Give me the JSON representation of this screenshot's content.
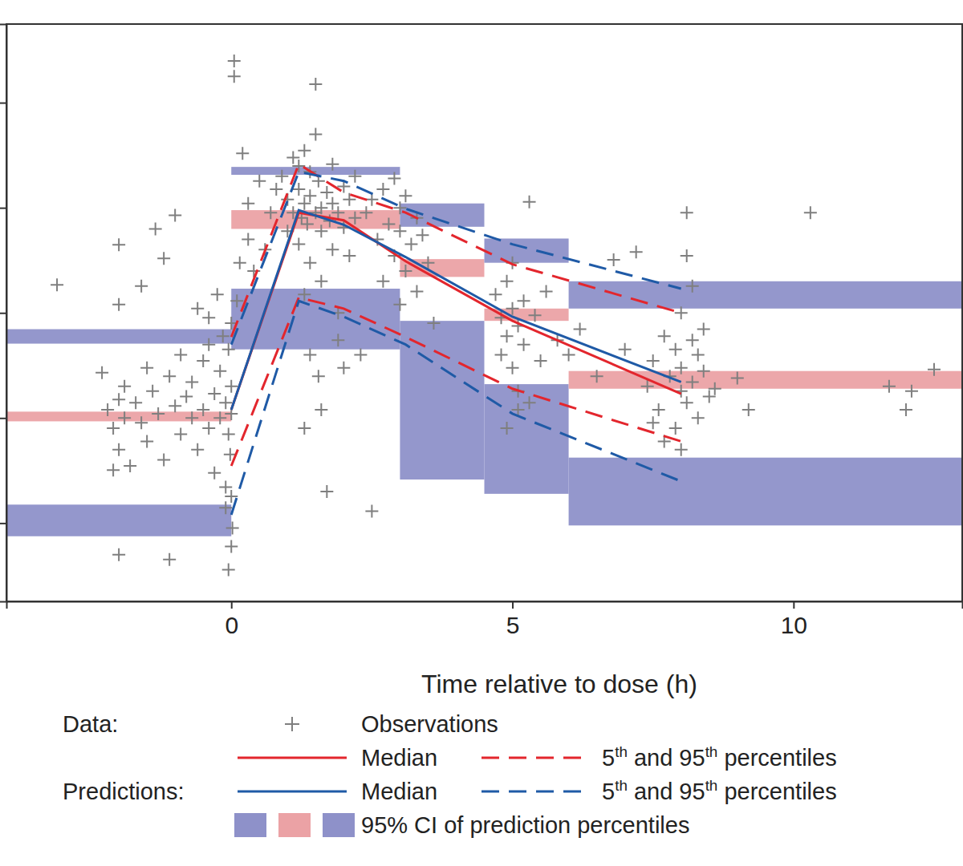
{
  "chart_data": {
    "type": "line",
    "xlabel": "Time relative to dose (h)",
    "xlim": [
      -4,
      13
    ],
    "xticks": [
      0,
      5,
      10
    ],
    "ylim": [
      0.18,
      56000
    ],
    "yticks": [
      1,
      10,
      100,
      1000,
      10000
    ],
    "log": "y",
    "tick_labels": "x",
    "legend": "bottom",
    "groups": [
      {
        "label": "Data:",
        "series": [
          {
            "name": "Observations",
            "type": "scatter",
            "marker": "plus",
            "color": "#7f7f7f",
            "x": [
              -3.1,
              -2.0,
              -1.35,
              -1.0,
              -1.2,
              -1.6,
              -2.0,
              -2.3,
              -2.1,
              -2.0,
              -1.1,
              -0.05,
              0.0,
              0.02,
              -0.1,
              0.05,
              0.05,
              0.2,
              0.5,
              0.7,
              -2.2,
              -2.1,
              -2.0,
              -2.0,
              -1.9,
              -1.9,
              -1.8,
              -1.7,
              -1.6,
              -1.5,
              -1.5,
              -1.4,
              -1.3,
              -1.2,
              -1.1,
              -1.0,
              -0.9,
              -0.9,
              -0.8,
              -0.7,
              -0.7,
              -0.6,
              -0.5,
              -0.5,
              -0.4,
              -0.4,
              -0.3,
              -0.3,
              -0.2,
              -0.2,
              -0.15,
              -0.1,
              -0.1,
              -0.05,
              -0.05,
              0,
              0,
              0,
              0,
              -0.02,
              -0.25,
              -0.4,
              -0.6,
              0.1,
              0.15,
              0.3,
              0.4,
              0.3,
              0.6,
              0.8,
              0.9,
              1.0,
              1.0,
              1.1,
              1.1,
              1.2,
              1.2,
              1.2,
              1.25,
              1.3,
              1.3,
              1.3,
              1.35,
              1.4,
              1.4,
              1.4,
              1.5,
              1.5,
              1.5,
              1.55,
              1.6,
              1.6,
              1.6,
              1.7,
              1.7,
              1.75,
              1.8,
              1.8,
              1.8,
              1.9,
              1.9,
              1.9,
              2.0,
              2.0,
              2.1,
              2.1,
              2.2,
              2.2,
              1.4,
              1.3,
              1.55,
              1.6,
              2.0,
              2.5,
              2.4,
              2.5,
              2.6,
              2.7,
              2.8,
              2.9,
              3.0,
              3.0,
              3.1,
              3.1,
              3.2,
              3.3,
              3.3,
              3.4,
              3.5,
              3.0,
              3.6,
              2.7,
              2.3,
              2.9,
              4.7,
              4.8,
              4.8,
              4.9,
              4.9,
              5.0,
              5.0,
              5.0,
              5.1,
              5.1,
              5.2,
              5.2,
              5.3,
              5.3,
              5.4,
              5.5,
              4.9,
              5.1,
              5.6,
              5.8,
              6.0,
              6.2,
              6.5,
              6.8,
              7.0,
              7.2,
              7.4,
              7.5,
              7.6,
              7.7,
              7.8,
              7.9,
              7.9,
              8.0,
              8.0,
              8.0,
              8.1,
              8.1,
              8.1,
              8.2,
              8.2,
              8.3,
              8.3,
              8.4,
              8.5,
              8.6,
              7.7,
              8.0,
              8.2,
              7.5,
              8.4,
              9.0,
              9.2,
              10.3,
              11.7,
              12.0,
              12.1,
              12.5
            ],
            "values": [
              185,
              445,
              630,
              850,
              330,
              180,
              120,
              27,
              3.2,
              0.5,
              0.45,
              0.36,
              0.6,
              0.9,
              1.4,
              25000,
              17800,
              3300,
              1800,
              900,
              12,
              8,
              15,
              5,
              20,
              10,
              3.5,
              14,
              9,
              30,
              6,
              18,
              11,
              4,
              25,
              13,
              7,
              40,
              16,
              10,
              22,
              5,
              35,
              12,
              8,
              50,
              17,
              3,
              28,
              10,
              60,
              14,
              2.2,
              45,
              7,
              20,
              11,
              1.8,
              80,
              4.5,
              150,
              90,
              110,
              130,
              300,
              500,
              250,
              1100,
              400,
              1500,
              2000,
              1200,
              600,
              3000,
              900,
              2500,
              1500,
              450,
              800,
              3500,
              1100,
              150,
              700,
              2200,
              1300,
              300,
              900,
              5000,
              15000,
              1800,
              600,
              1000,
              200,
              2.0,
              1400,
              750,
              2600,
              400,
              1100,
              900,
              100,
              55,
              1600,
              650,
              1200,
              350,
              2000,
              800,
              40,
              8,
              25,
              12,
              30,
              1.3,
              900,
              1200,
              500,
              1500,
              700,
              350,
              1000,
              600,
              250,
              1300,
              450,
              800,
              160,
              550,
              300,
              120,
              80,
              200,
              40,
              1900,
              150,
              90,
              40,
              200,
              60,
              110,
              30,
              300,
              75,
              18,
              130,
              50,
              1140,
              14,
              95,
              35,
              8,
              12,
              160,
              55,
              40,
              70,
              25,
              320,
              45,
              380,
              20,
              35,
              12,
              60,
              25,
              8,
              45,
              18,
              100,
              30,
              900,
              350,
              14,
              55,
              22,
              10,
              40,
              28,
              16,
              19,
              6,
              5,
              180,
              9,
              70,
              24,
              12,
              900,
              20,
              12,
              18,
              29
            ]
          },
          {
            "name": "Median",
            "type": "line",
            "line_style": "solid",
            "color": "#e3262d",
            "x": [
              0,
              1.2,
              2,
              3.1,
              5,
              8
            ],
            "values": [
              12,
              900,
              760,
              310,
              84,
              17
            ]
          },
          {
            "name": "5th and 95th percentiles",
            "type": "percentiles",
            "line_style": "dashed",
            "color": "#e3262d",
            "x": [
              0,
              1.2,
              2,
              3.1,
              5,
              8
            ],
            "lower": [
              3.5,
              140,
              110,
              59,
              19,
              6
            ],
            "upper": [
              59,
              2600,
              1400,
              900,
              290,
              100
            ]
          }
        ]
      },
      {
        "label": "Predictions:",
        "series": [
          {
            "name": "Median",
            "type": "line",
            "line_style": "solid",
            "color": "#1f5aa6",
            "x": [
              0,
              1.2,
              2,
              3.1,
              5,
              8
            ],
            "values": [
              12,
              950,
              690,
              340,
              92,
              22
            ]
          },
          {
            "name": "5th and 95th percentiles",
            "type": "percentiles",
            "line_style": "dashed",
            "color": "#1f5aa6",
            "x": [
              0,
              1.2,
              2,
              3.1,
              5,
              8
            ],
            "lower": [
              1.2,
              130,
              92,
              50,
              11,
              2.5
            ],
            "upper": [
              50,
              2200,
              1800,
              980,
              450,
              170
            ]
          },
          {
            "name": "95% CI of prediction percentiles",
            "type": "band",
            "colors": [
              "#8e91c9",
              "#eba2a5",
              "#8e91c9"
            ],
            "bins": [
              -4,
              0,
              3,
              4.5,
              6,
              13
            ],
            "p5": [
              [
                0.75,
                1.5
              ],
              [
                45,
                170
              ],
              [
                2.6,
                84
              ],
              [
                1.9,
                21
              ],
              [
                0.95,
                4.2
              ]
            ],
            "p50": [
              [
                9.3,
                11.5
              ],
              [
                630,
                950
              ],
              [
                220,
                325
              ],
              [
                84,
                110
              ],
              [
                19,
                28
              ]
            ],
            "p95": [
              [
                51,
                70
              ],
              [
                2060,
                2450
              ],
              [
                660,
                1100
              ],
              [
                300,
                510
              ],
              [
                110,
                200
              ]
            ]
          }
        ]
      }
    ]
  }
}
